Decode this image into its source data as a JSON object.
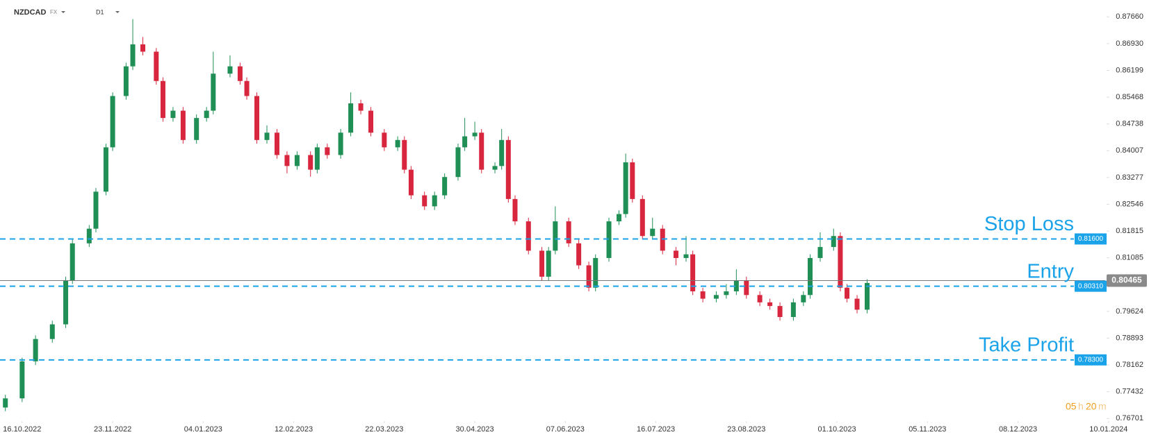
{
  "header": {
    "symbol": "NZDCAD",
    "market": "FX",
    "timeframe": "D1"
  },
  "timer": [
    "05",
    "h",
    "20",
    "m"
  ],
  "chart_data": {
    "type": "candlestick",
    "x": [
      -5,
      0,
      4,
      9,
      13,
      15,
      20,
      22,
      25,
      27,
      31,
      33,
      36,
      40,
      42,
      45,
      48,
      52,
      55,
      57,
      62,
      65,
      67,
      70,
      73,
      76,
      79,
      82,
      86,
      88,
      91,
      95,
      98,
      101,
      104,
      108,
      112,
      114,
      116,
      120,
      123,
      126,
      130,
      132,
      135,
      137,
      141,
      143,
      145,
      147,
      151,
      155,
      157,
      159,
      163,
      166,
      169,
      171,
      175,
      178,
      180,
      182,
      185,
      188,
      191,
      195,
      198,
      200,
      203,
      207,
      210,
      213,
      216,
      220,
      223,
      226,
      230,
      233,
      235,
      238,
      242,
      244,
      246,
      249,
      252
    ],
    "open": [
      0.77,
      0.7725,
      0.7826,
      0.7887,
      0.7927,
      0.8047,
      0.8148,
      0.8188,
      0.8289,
      0.841,
      0.855,
      0.8631,
      0.8691,
      0.8671,
      0.8591,
      0.849,
      0.851,
      0.843,
      0.849,
      0.851,
      0.8611,
      0.8631,
      0.8591,
      0.855,
      0.843,
      0.845,
      0.8389,
      0.8359,
      0.8389,
      0.8349,
      0.841,
      0.8389,
      0.845,
      0.853,
      0.851,
      0.845,
      0.841,
      0.843,
      0.8349,
      0.8279,
      0.8249,
      0.8279,
      0.8329,
      0.841,
      0.844,
      0.845,
      0.8349,
      0.8359,
      0.843,
      0.8269,
      0.8208,
      0.8128,
      0.8057,
      0.8128,
      0.8208,
      0.8148,
      0.8088,
      0.8027,
      0.8108,
      0.8208,
      0.8228,
      0.8369,
      0.8269,
      0.8168,
      0.8188,
      0.8128,
      0.8108,
      0.8118,
      0.8017,
      0.7997,
      0.8007,
      0.8017,
      0.8047,
      0.8007,
      0.7987,
      0.7977,
      0.7947,
      0.7987,
      0.8007,
      0.8108,
      0.8138,
      0.8168,
      0.8027,
      0.7997,
      0.7967
    ],
    "high": [
      0.7735,
      0.7836,
      0.7897,
      0.7937,
      0.8057,
      0.8158,
      0.8198,
      0.8299,
      0.842,
      0.856,
      0.8641,
      0.876,
      0.8711,
      0.8681,
      0.8601,
      0.852,
      0.852,
      0.85,
      0.852,
      0.8671,
      0.8661,
      0.8641,
      0.8601,
      0.856,
      0.847,
      0.846,
      0.8399,
      0.8399,
      0.8399,
      0.842,
      0.842,
      0.846,
      0.856,
      0.854,
      0.852,
      0.846,
      0.844,
      0.844,
      0.8359,
      0.8289,
      0.8289,
      0.8339,
      0.842,
      0.849,
      0.848,
      0.846,
      0.8369,
      0.846,
      0.844,
      0.8279,
      0.8218,
      0.8138,
      0.8138,
      0.8249,
      0.8218,
      0.8158,
      0.8098,
      0.8118,
      0.8218,
      0.8238,
      0.8393,
      0.8379,
      0.8279,
      0.8218,
      0.8198,
      0.8138,
      0.8168,
      0.8128,
      0.8027,
      0.8017,
      0.8037,
      0.8077,
      0.8057,
      0.8017,
      0.7997,
      0.7987,
      0.7997,
      0.8017,
      0.8118,
      0.8178,
      0.8188,
      0.8178,
      0.8037,
      0.8007,
      0.805
    ],
    "low": [
      0.769,
      0.7715,
      0.7816,
      0.7877,
      0.7917,
      0.8037,
      0.8138,
      0.8178,
      0.8279,
      0.84,
      0.854,
      0.8621,
      0.8661,
      0.8581,
      0.848,
      0.848,
      0.842,
      0.842,
      0.848,
      0.85,
      0.8601,
      0.8581,
      0.854,
      0.842,
      0.842,
      0.8379,
      0.8339,
      0.8349,
      0.833,
      0.8339,
      0.8379,
      0.8379,
      0.844,
      0.85,
      0.844,
      0.84,
      0.84,
      0.8339,
      0.8269,
      0.8239,
      0.8239,
      0.8269,
      0.8319,
      0.84,
      0.843,
      0.8339,
      0.8339,
      0.8349,
      0.8259,
      0.8198,
      0.8118,
      0.8047,
      0.8047,
      0.8118,
      0.8138,
      0.8078,
      0.8017,
      0.8017,
      0.8098,
      0.8198,
      0.8218,
      0.8259,
      0.8158,
      0.8158,
      0.8118,
      0.8088,
      0.8098,
      0.8007,
      0.7987,
      0.7987,
      0.7997,
      0.8007,
      0.7997,
      0.7977,
      0.7967,
      0.7937,
      0.7937,
      0.7977,
      0.7997,
      0.8098,
      0.8128,
      0.8017,
      0.7987,
      0.7957,
      0.7957
    ],
    "close": [
      0.7725,
      0.7826,
      0.7887,
      0.7927,
      0.8047,
      0.8148,
      0.8188,
      0.8289,
      0.841,
      0.855,
      0.8631,
      0.8691,
      0.8671,
      0.8591,
      0.849,
      0.851,
      0.843,
      0.849,
      0.851,
      0.8611,
      0.8631,
      0.8591,
      0.855,
      0.843,
      0.845,
      0.8389,
      0.8359,
      0.8389,
      0.8349,
      0.841,
      0.8389,
      0.845,
      0.853,
      0.851,
      0.845,
      0.841,
      0.843,
      0.8349,
      0.8279,
      0.8249,
      0.8279,
      0.8329,
      0.841,
      0.844,
      0.845,
      0.8349,
      0.8359,
      0.843,
      0.8269,
      0.8208,
      0.8128,
      0.8057,
      0.8128,
      0.8208,
      0.8148,
      0.8088,
      0.8027,
      0.8108,
      0.8208,
      0.8228,
      0.8369,
      0.8269,
      0.8168,
      0.8188,
      0.8128,
      0.8108,
      0.8118,
      0.8017,
      0.7997,
      0.8007,
      0.8017,
      0.8047,
      0.8007,
      0.7987,
      0.7977,
      0.7947,
      0.7987,
      0.8007,
      0.8108,
      0.8138,
      0.8168,
      0.8027,
      0.7997,
      0.7967,
      0.804
    ],
    "up_color": "#1f8f55",
    "down_color": "#d7263d",
    "xlim": [
      -6.6,
      323
    ],
    "xticks": [
      {
        "value": 0,
        "label": "16.10.2022"
      },
      {
        "value": 27,
        "label": "23.11.2022"
      },
      {
        "value": 54,
        "label": "04.01.2023"
      },
      {
        "value": 81,
        "label": "12.02.2023"
      },
      {
        "value": 108,
        "label": "22.03.2023"
      },
      {
        "value": 135,
        "label": "30.04.2023"
      },
      {
        "value": 162,
        "label": "07.06.2023"
      },
      {
        "value": 189,
        "label": "16.07.2023"
      },
      {
        "value": 216,
        "label": "23.08.2023"
      },
      {
        "value": 243,
        "label": "01.10.2023"
      },
      {
        "value": 270,
        "label": "05.11.2023"
      },
      {
        "value": 297,
        "label": "08.12.2023"
      },
      {
        "value": 324,
        "label": "10.01.2024"
      }
    ],
    "ylim": [
      0.7665,
      0.8812
    ],
    "yticks": [
      {
        "value": 0.8766,
        "label": "0.87660"
      },
      {
        "value": 0.8693,
        "label": "0.86930"
      },
      0.86199,
      0.85468,
      0.84738,
      0.84007,
      0.83277,
      0.82546,
      0.81815,
      0.81085,
      0.79624,
      0.78893,
      0.78162,
      0.77432,
      0.76701
    ],
    "grid": false,
    "level_color": "#1aa3e8",
    "levels": [
      {
        "name": "Stop Loss",
        "value": 0.816,
        "label": "0.81600"
      },
      {
        "name": "Entry",
        "value": 0.8031,
        "label": "0.80310"
      },
      {
        "name": "Take Profit",
        "value": 0.783,
        "label": "0.78300"
      }
    ],
    "current_price": 0.80465
  }
}
